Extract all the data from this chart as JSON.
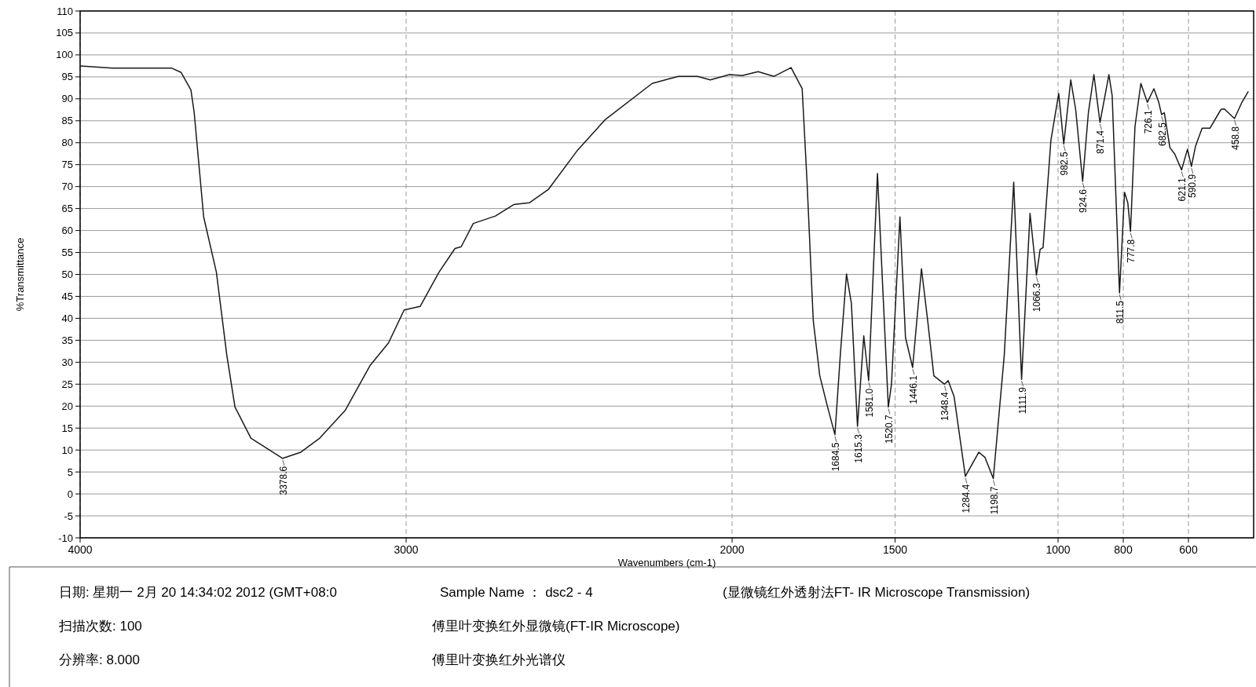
{
  "chart_data": {
    "type": "line",
    "xlabel": "Wavenumbers (cm-1)",
    "ylabel": "%Transmittance",
    "xlim": [
      4000,
      400
    ],
    "xticks": [
      4000,
      3000,
      2000,
      1500,
      1000,
      800,
      600
    ],
    "ylim": [
      -10,
      110
    ],
    "yticks": [
      -10,
      -5,
      0,
      5,
      10,
      15,
      20,
      25,
      30,
      35,
      40,
      45,
      50,
      55,
      60,
      65,
      70,
      75,
      80,
      85,
      90,
      95,
      100,
      105,
      110
    ],
    "grid": true,
    "marker": "none",
    "line_style": "solid",
    "series": [
      {
        "color": "#1a1a1a",
        "x": [
          4000,
          3900,
          3800,
          3720,
          3690,
          3660,
          3650,
          3621,
          3582,
          3550,
          3525,
          3476,
          3378.6,
          3323,
          3265,
          3187,
          3111,
          3054,
          3006,
          2957,
          2899,
          2850,
          2831,
          2794,
          2726,
          2670,
          2622,
          2563,
          2476,
          2390,
          2245,
          2165,
          2106,
          2067,
          2008,
          1969,
          1920,
          1872,
          1819,
          1785,
          1770,
          1751,
          1731,
          1707,
          1684.5,
          1668,
          1649,
          1634,
          1615.3,
          1596,
          1581.0,
          1554,
          1538,
          1520.7,
          1511,
          1485,
          1468,
          1446.1,
          1419,
          1400,
          1381,
          1348.4,
          1337,
          1319,
          1284.4,
          1243,
          1224,
          1198.7,
          1165,
          1136,
          1111.9,
          1086,
          1066.3,
          1055,
          1046,
          1022,
          998,
          982.5,
          961,
          946,
          924.6,
          907,
          890,
          871.4,
          844,
          834,
          811.5,
          796,
          786,
          777.8,
          764,
          746,
          726.1,
          706,
          691,
          682.5,
          674,
          657,
          642,
          621.1,
          603,
          590.9,
          578,
          558,
          534,
          500,
          490,
          458.8,
          436,
          417
        ],
        "values": [
          97.5,
          97,
          97,
          97,
          96,
          92,
          86.8,
          63.1,
          50.5,
          31.6,
          19.8,
          12.7,
          8.1,
          9.5,
          12.7,
          19.0,
          29.2,
          34.4,
          41.9,
          42.7,
          50.5,
          55.9,
          56.3,
          61.6,
          63.3,
          65.9,
          66.3,
          69.4,
          78.1,
          85.2,
          93.5,
          95.1,
          95.1,
          94.3,
          95.5,
          95.3,
          96.2,
          95.1,
          97.1,
          92.3,
          71.0,
          39.5,
          26.9,
          19.8,
          13.5,
          31.6,
          50.1,
          43.4,
          15.4,
          36.0,
          25.8,
          73.0,
          47.3,
          19.8,
          25.0,
          63.1,
          35.6,
          28.8,
          51.3,
          39.5,
          26.9,
          25.0,
          25.8,
          22.2,
          4.0,
          9.5,
          8.3,
          3.5,
          31.6,
          71.0,
          26.1,
          63.9,
          49.8,
          55.7,
          56.1,
          80.5,
          91.2,
          79.7,
          94.3,
          87.6,
          71.2,
          86.8,
          95.5,
          84.6,
          95.5,
          90.7,
          45.8,
          68.7,
          66.3,
          59.8,
          83.7,
          93.5,
          89.2,
          92.3,
          89.2,
          86.4,
          86.8,
          78.9,
          77.4,
          73.8,
          78.5,
          74.6,
          79.3,
          83.3,
          83.3,
          87.6,
          87.7,
          85.5,
          89.2,
          91.6
        ]
      }
    ],
    "annotations": [
      {
        "text": "3378.6",
        "x": 3378.6,
        "y": 8.1
      },
      {
        "text": "1684.5",
        "x": 1684.5,
        "y": 13.5
      },
      {
        "text": "1615.3",
        "x": 1615.3,
        "y": 15.4
      },
      {
        "text": "1581.0",
        "x": 1581.0,
        "y": 25.8
      },
      {
        "text": "1520.7",
        "x": 1520.7,
        "y": 19.8
      },
      {
        "text": "1446.1",
        "x": 1446.1,
        "y": 28.8
      },
      {
        "text": "1348.4",
        "x": 1348.4,
        "y": 25.0
      },
      {
        "text": "1284.4",
        "x": 1284.4,
        "y": 4.0
      },
      {
        "text": "1198.7",
        "x": 1198.7,
        "y": 3.5
      },
      {
        "text": "1111.9",
        "x": 1111.9,
        "y": 26.1
      },
      {
        "text": "1066.3",
        "x": 1066.3,
        "y": 49.8
      },
      {
        "text": "982.5",
        "x": 982.5,
        "y": 79.7
      },
      {
        "text": "924.6",
        "x": 924.6,
        "y": 71.2
      },
      {
        "text": "871.4",
        "x": 871.4,
        "y": 84.6
      },
      {
        "text": "811.5",
        "x": 811.5,
        "y": 45.8
      },
      {
        "text": "777.8",
        "x": 777.8,
        "y": 59.8
      },
      {
        "text": "726.1",
        "x": 726.1,
        "y": 89.2
      },
      {
        "text": "682.5",
        "x": 682.5,
        "y": 86.4
      },
      {
        "text": "621.1",
        "x": 621.1,
        "y": 73.8
      },
      {
        "text": "590.9",
        "x": 590.9,
        "y": 74.6
      },
      {
        "text": "458.8",
        "x": 458.8,
        "y": 85.5
      },
      "日期: 星期一 2月 20 14:34:02 2012 (GMT+08:0",
      "Sample Name ： dsc2 - 4",
      "(显微镜红外透射法FT- IR Microscope Transmission)",
      "扫描次数: 100",
      "傅里叶变换红外显微镜(FT-IR Microscope)",
      "分辨率: 8.000",
      "傅里叶变换红外光谱仪"
    ]
  }
}
